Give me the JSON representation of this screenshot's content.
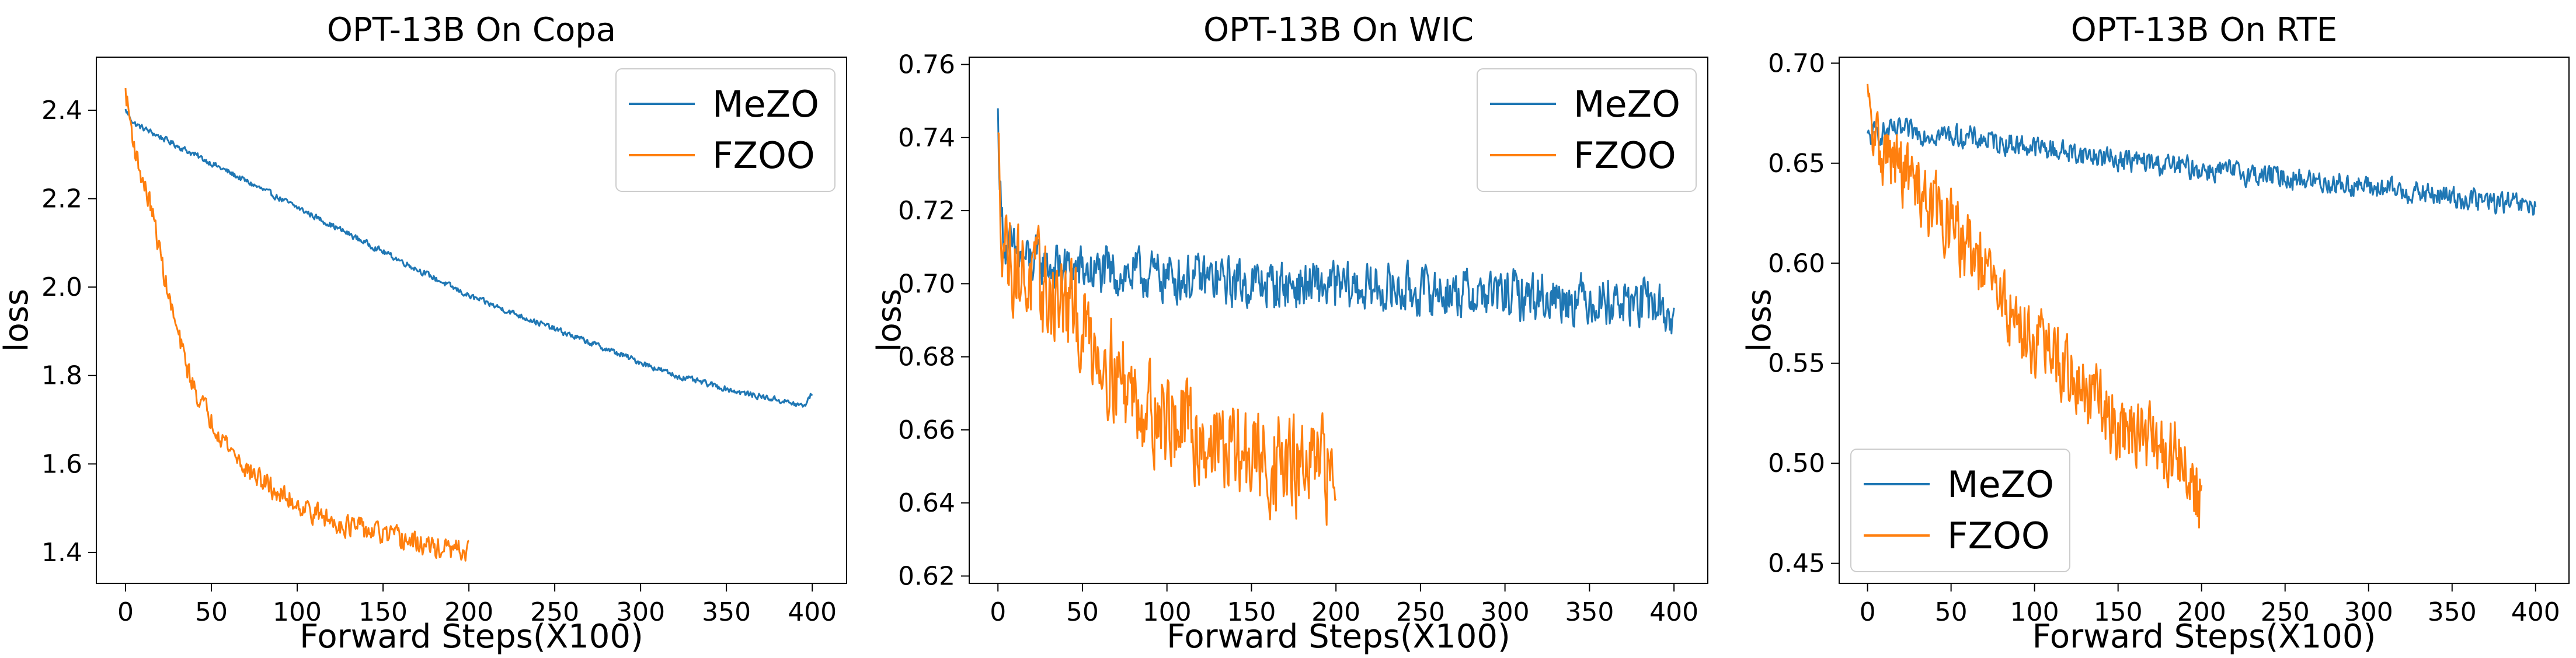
{
  "chart_data": [
    {
      "type": "line",
      "title": "OPT-13B On Copa",
      "xlabel": "Forward Steps(X100)",
      "ylabel": "loss",
      "xlim": [
        -17,
        420
      ],
      "ylim": [
        1.33,
        2.52
      ],
      "xticks": [
        0,
        50,
        100,
        150,
        200,
        250,
        300,
        350,
        400
      ],
      "yticks": [
        1.4,
        1.6,
        1.8,
        2.0,
        2.2,
        2.4
      ],
      "tick_labels_x": [
        "0",
        "50",
        "100",
        "150",
        "200",
        "250",
        "300",
        "350",
        "400"
      ],
      "tick_labels_y": [
        "1.4",
        "1.6",
        "1.8",
        "2.0",
        "2.2",
        "2.4"
      ],
      "legend_position": "upper-right",
      "grid": false,
      "series": [
        {
          "name": "MeZO",
          "color": "#1f77b4",
          "x": [
            0,
            5,
            10,
            20,
            30,
            40,
            50,
            60,
            70,
            80,
            90,
            100,
            120,
            140,
            160,
            180,
            200,
            220,
            240,
            260,
            280,
            300,
            320,
            340,
            360,
            380,
            390,
            395,
            400
          ],
          "y": [
            2.4,
            2.37,
            2.36,
            2.34,
            2.32,
            2.3,
            2.28,
            2.26,
            2.24,
            2.22,
            2.2,
            2.18,
            2.14,
            2.1,
            2.06,
            2.02,
            1.98,
            1.95,
            1.92,
            1.89,
            1.86,
            1.83,
            1.8,
            1.78,
            1.76,
            1.745,
            1.735,
            1.73,
            1.76
          ],
          "noise": 0.006
        },
        {
          "name": "FZOO",
          "color": "#ff7f0e",
          "x": [
            0,
            3,
            6,
            10,
            15,
            20,
            25,
            30,
            35,
            40,
            50,
            60,
            70,
            80,
            90,
            100,
            110,
            120,
            130,
            140,
            150,
            160,
            170,
            180,
            190,
            200
          ],
          "y": [
            2.44,
            2.37,
            2.3,
            2.24,
            2.18,
            2.08,
            1.98,
            1.9,
            1.83,
            1.77,
            1.7,
            1.64,
            1.59,
            1.56,
            1.53,
            1.51,
            1.49,
            1.47,
            1.46,
            1.45,
            1.44,
            1.43,
            1.42,
            1.41,
            1.405,
            1.4
          ],
          "noise": 0.022
        }
      ]
    },
    {
      "type": "line",
      "title": "OPT-13B On WIC",
      "xlabel": "Forward Steps(X100)",
      "ylabel": "loss",
      "xlim": [
        -17,
        420
      ],
      "ylim": [
        0.618,
        0.762
      ],
      "xticks": [
        0,
        50,
        100,
        150,
        200,
        250,
        300,
        350,
        400
      ],
      "yticks": [
        0.62,
        0.64,
        0.66,
        0.68,
        0.7,
        0.72,
        0.74,
        0.76
      ],
      "tick_labels_x": [
        "0",
        "50",
        "100",
        "150",
        "200",
        "250",
        "300",
        "350",
        "400"
      ],
      "tick_labels_y": [
        "0.62",
        "0.64",
        "0.66",
        "0.68",
        "0.70",
        "0.72",
        "0.74",
        "0.76"
      ],
      "legend_position": "upper-right",
      "grid": false,
      "series": [
        {
          "name": "MeZO",
          "color": "#1f77b4",
          "x": [
            0,
            2,
            5,
            10,
            20,
            40,
            60,
            100,
            150,
            200,
            250,
            300,
            350,
            390,
            400
          ],
          "y": [
            0.745,
            0.718,
            0.71,
            0.708,
            0.706,
            0.704,
            0.703,
            0.702,
            0.7,
            0.699,
            0.698,
            0.697,
            0.696,
            0.694,
            0.69
          ],
          "noise": 0.006
        },
        {
          "name": "FZOO",
          "color": "#ff7f0e",
          "x": [
            0,
            2,
            5,
            10,
            20,
            30,
            40,
            50,
            60,
            70,
            80,
            100,
            120,
            140,
            160,
            180,
            200
          ],
          "y": [
            0.735,
            0.72,
            0.71,
            0.705,
            0.7,
            0.697,
            0.694,
            0.688,
            0.682,
            0.676,
            0.67,
            0.663,
            0.658,
            0.654,
            0.651,
            0.649,
            0.648
          ],
          "noise": 0.012
        }
      ]
    },
    {
      "type": "line",
      "title": "OPT-13B On RTE",
      "xlabel": "Forward Steps(X100)",
      "ylabel": "loss",
      "xlim": [
        -17,
        420
      ],
      "ylim": [
        0.44,
        0.703
      ],
      "xticks": [
        0,
        50,
        100,
        150,
        200,
        250,
        300,
        350,
        400
      ],
      "yticks": [
        0.45,
        0.5,
        0.55,
        0.6,
        0.65,
        0.7
      ],
      "tick_labels_x": [
        "0",
        "50",
        "100",
        "150",
        "200",
        "250",
        "300",
        "350",
        "400"
      ],
      "tick_labels_y": [
        "0.45",
        "0.50",
        "0.55",
        "0.60",
        "0.65",
        "0.70"
      ],
      "legend_position": "lower-left",
      "grid": false,
      "series": [
        {
          "name": "MeZO",
          "color": "#1f77b4",
          "x": [
            0,
            5,
            20,
            50,
            100,
            150,
            200,
            250,
            300,
            350,
            400
          ],
          "y": [
            0.662,
            0.665,
            0.666,
            0.664,
            0.658,
            0.652,
            0.647,
            0.643,
            0.638,
            0.633,
            0.628
          ],
          "noise": 0.005
        },
        {
          "name": "FZOO",
          "color": "#ff7f0e",
          "x": [
            0,
            2,
            5,
            10,
            20,
            30,
            40,
            50,
            60,
            70,
            80,
            90,
            100,
            110,
            120,
            130,
            140,
            150,
            160,
            170,
            180,
            190,
            200
          ],
          "y": [
            0.68,
            0.665,
            0.66,
            0.655,
            0.647,
            0.638,
            0.628,
            0.618,
            0.607,
            0.595,
            0.582,
            0.57,
            0.562,
            0.555,
            0.545,
            0.535,
            0.528,
            0.52,
            0.515,
            0.51,
            0.505,
            0.5,
            0.48
          ],
          "noise": 0.016
        }
      ]
    }
  ]
}
